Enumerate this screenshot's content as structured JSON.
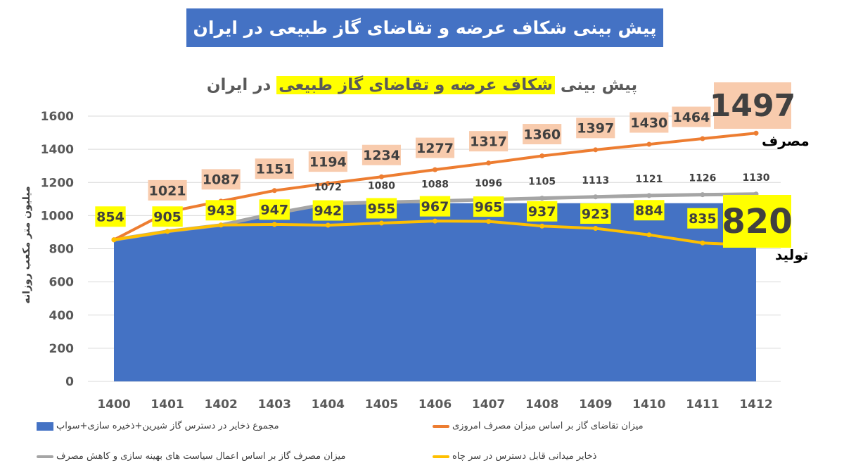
{
  "banner": {
    "title": "پیش بینی شکاف عرضه و تقاضای گاز طبیعی در ایران"
  },
  "chart_data": {
    "type": "line",
    "title_pre": "پیش بینی",
    "title_hl": "شکاف عرضه و تقاضای گاز طبیعی",
    "title_post": "در ایران",
    "ylabel": "میلیون متر مکعب روزانه",
    "ylim": [
      0,
      1600
    ],
    "yticks": [
      0,
      200,
      400,
      600,
      800,
      1000,
      1200,
      1400,
      1600
    ],
    "grid": true,
    "legend_position": "bottom",
    "categories": [
      "1400",
      "1401",
      "1402",
      "1403",
      "1404",
      "1405",
      "1406",
      "1407",
      "1408",
      "1409",
      "1410",
      "1411",
      "1412"
    ],
    "series": [
      {
        "name": "مجموع ذخایر در دسترس  گاز شیرین+ذخیره سازی+سواپ",
        "type": "area",
        "color": "#4472C4",
        "values": [
          854,
          905,
          943,
          1013,
          1072,
          1075,
          1075,
          1075,
          1075,
          1075,
          1075,
          1075,
          1075
        ]
      },
      {
        "name": "میزان تقاضای گاز بر اساس میزان مصرف امروزی",
        "type": "line",
        "color": "#ED7D31",
        "label_bg": "#F8CBAD",
        "values": [
          854,
          1021,
          1087,
          1151,
          1194,
          1234,
          1277,
          1317,
          1360,
          1397,
          1430,
          1464,
          1497
        ]
      },
      {
        "name": "میزان مصرف گاز بر اساس اعمال سیاست های بهینه سازی و کاهش مصرف",
        "type": "line",
        "color": "#A5A5A5",
        "values": [
          854,
          905,
          943,
          1013,
          1072,
          1080,
          1088,
          1096,
          1105,
          1113,
          1121,
          1126,
          1130
        ]
      },
      {
        "name": "ذخایر میدانی قابل دسترس در سر چاه",
        "type": "line",
        "color": "#FFC000",
        "label_bg": "#FFFF00",
        "values": [
          854,
          905,
          943,
          947,
          942,
          955,
          967,
          965,
          937,
          923,
          884,
          835,
          820
        ]
      }
    ]
  },
  "annotations": {
    "demand_value": "1497",
    "demand_label": "مصرف",
    "supply_value": "820",
    "supply_label": "تولید"
  }
}
